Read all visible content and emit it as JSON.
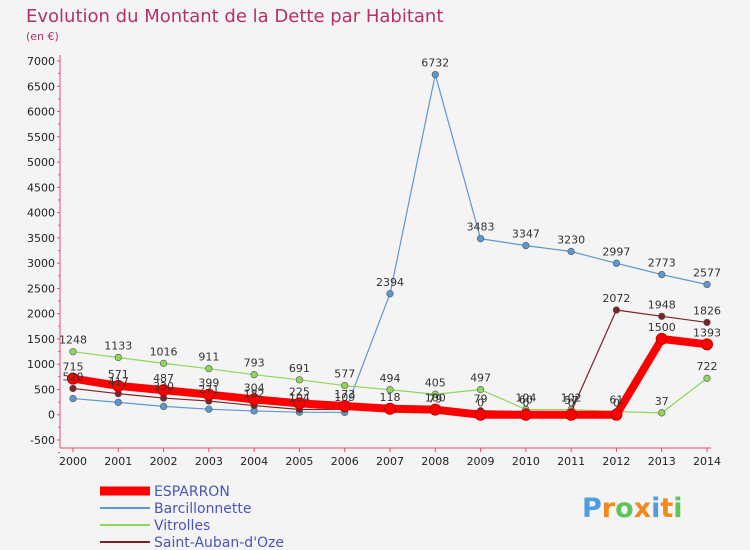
{
  "chart_data": {
    "type": "line",
    "title": "Evolution du Montant de la Dette par Habitant",
    "subtitle": "(en €)",
    "xlabel": "",
    "ylabel": "",
    "categories": [
      "2000",
      "2001",
      "2002",
      "2003",
      "2004",
      "2005",
      "2006",
      "2007",
      "2008",
      "2009",
      "2010",
      "2011",
      "2012",
      "2013",
      "2014"
    ],
    "ylim": [
      -500,
      7000
    ],
    "yticks": [
      7000,
      6500,
      6000,
      5500,
      5000,
      4500,
      4000,
      3500,
      3000,
      2500,
      2000,
      1500,
      1000,
      500,
      0,
      -500
    ],
    "grid": false,
    "legend_position": "bottom-left",
    "series": [
      {
        "name": "ESPARRON",
        "color": "#ff0000",
        "line_width": "thick",
        "values": [
          715,
          571,
          487,
          399,
          304,
          225,
          173,
          118,
          100,
          0,
          0,
          0,
          0,
          1500,
          1393
        ],
        "labels": [
          "715",
          "571",
          "487",
          "399",
          "304",
          "225",
          "173",
          "118",
          "100",
          "0",
          "0",
          "0",
          "0",
          "1500",
          "1393"
        ]
      },
      {
        "name": "Barcillonnette",
        "color": "#5d98cf",
        "line_width": "thin",
        "values": [
          320,
          245,
          165,
          110,
          75,
          50,
          45,
          2394,
          6732,
          3483,
          3347,
          3230,
          2997,
          2773,
          2577
        ],
        "labels": [
          "",
          "",
          "",
          "",
          "",
          "",
          "",
          "2394",
          "6732",
          "3483",
          "3347",
          "3230",
          "2997",
          "2773",
          "2577"
        ]
      },
      {
        "name": "Vitrolles",
        "color": "#8fd65a",
        "line_width": "thin",
        "values": [
          1248,
          1133,
          1016,
          911,
          793,
          691,
          577,
          494,
          405,
          497,
          104,
          102,
          61,
          37,
          722
        ],
        "labels": [
          "1248",
          "1133",
          "1016",
          "911",
          "793",
          "691",
          "577",
          "494",
          "405",
          "497",
          "104",
          "102",
          "61",
          "37",
          "722"
        ]
      },
      {
        "name": "Saint-Auban-d'Oze",
        "color": "#7b2228",
        "line_width": "thin",
        "values": [
          520,
          417,
          330,
          271,
          182,
          104,
          109,
          118,
          79,
          79,
          60,
          57,
          2072,
          1948,
          1826
        ],
        "labels": [
          "520",
          "417",
          "330",
          "271",
          "182",
          "104",
          "109",
          "",
          "79",
          "79",
          "60",
          "57",
          "2072",
          "1948",
          "1826"
        ]
      }
    ]
  },
  "logo": {
    "letters": [
      "P",
      "r",
      "o",
      "x",
      "i",
      "t",
      "i"
    ],
    "colors": [
      "#4f9de0",
      "#f08a1c",
      "#5fc45a",
      "#f08a1c",
      "#4f9de0",
      "#f08a1c",
      "#5fc45a"
    ]
  }
}
